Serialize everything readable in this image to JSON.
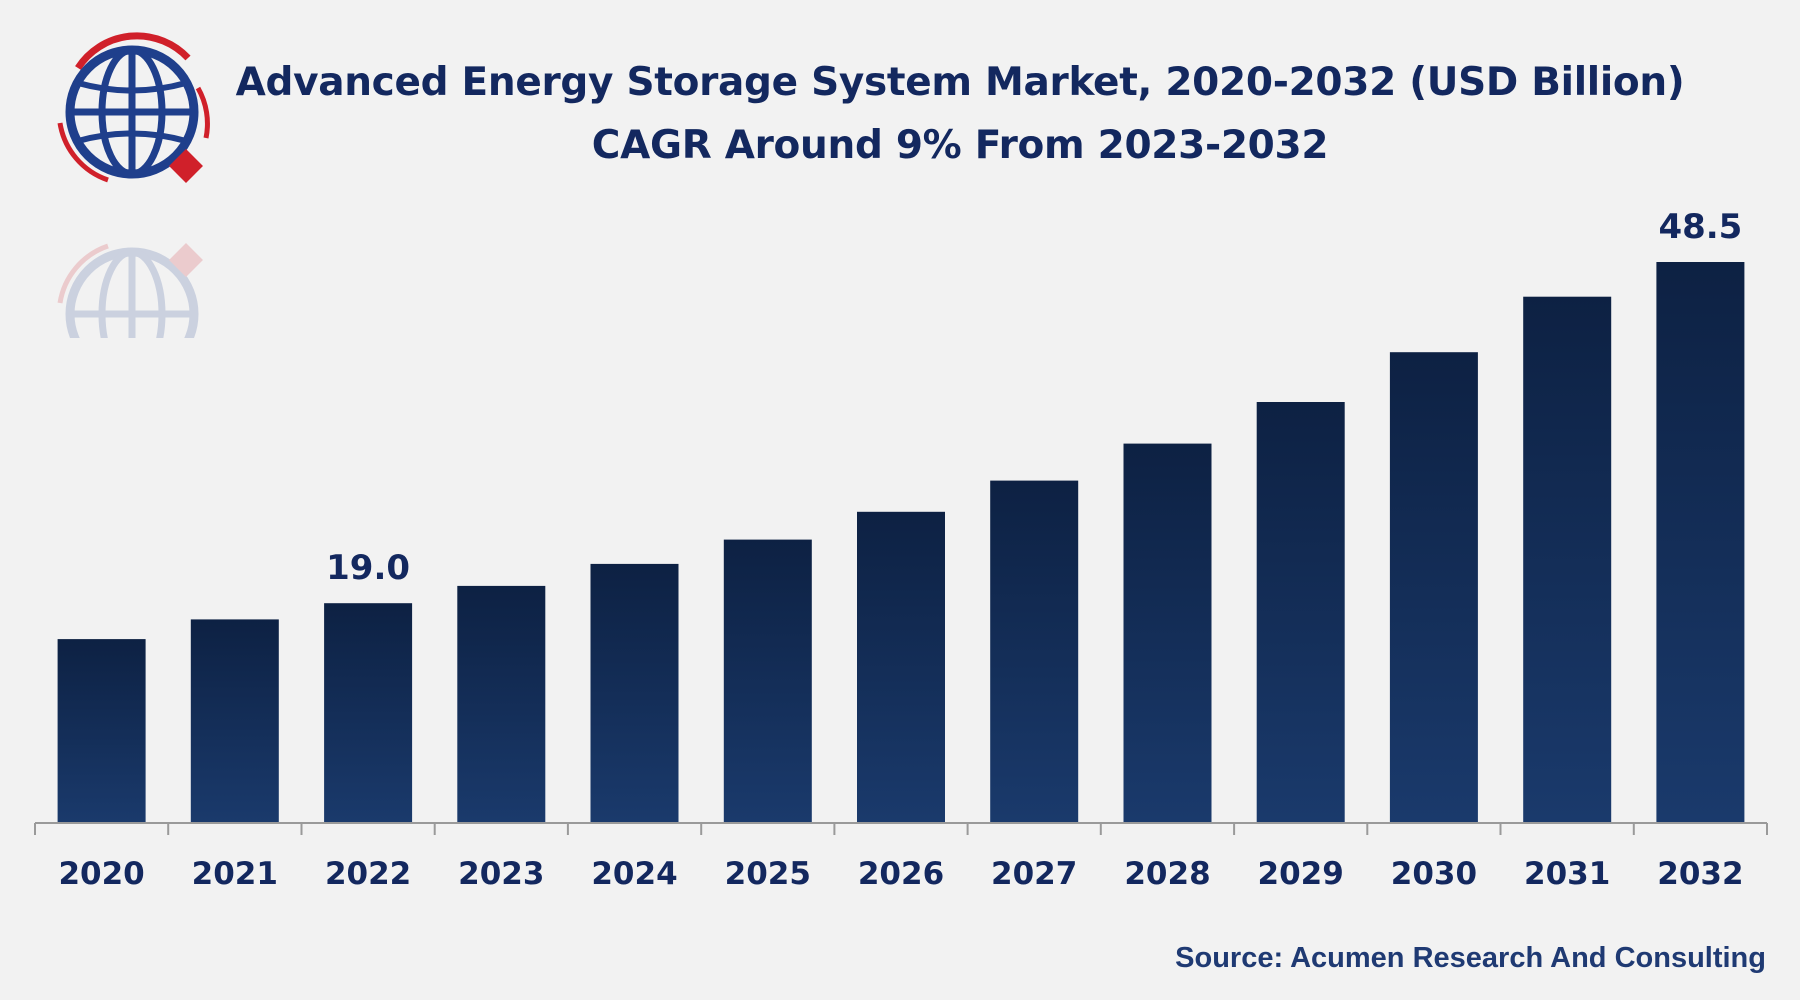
{
  "header": {
    "title_line1": "Advanced Energy Storage System Market, 2020-2032 (USD Billion)",
    "title_line2": "CAGR Around 9% From 2023-2032"
  },
  "logo": {
    "icon": "globe-logo-icon"
  },
  "source": "Source: Acumen Research And Consulting",
  "colors": {
    "bar_top": "#0d2143",
    "bar_bottom": "#1a3a6c",
    "text": "#13285f",
    "axis": "#9a9a9a",
    "logo_blue": "#1f3f8c",
    "logo_red": "#d0202a"
  },
  "chart_data": {
    "type": "bar",
    "title": "Advanced Energy Storage System Market, 2020-2032 (USD Billion)",
    "subtitle": "CAGR Around 9% From 2023-2032",
    "xlabel": "",
    "ylabel": "",
    "categories": [
      "2020",
      "2021",
      "2022",
      "2023",
      "2024",
      "2025",
      "2026",
      "2027",
      "2028",
      "2029",
      "2030",
      "2031",
      "2032"
    ],
    "values": [
      15.9,
      17.6,
      19.0,
      20.5,
      22.4,
      24.5,
      26.9,
      29.6,
      32.8,
      36.4,
      40.7,
      45.5,
      48.5
    ],
    "data_labels": {
      "2": "19.0",
      "12": "48.5"
    },
    "ylim": [
      0,
      50
    ],
    "grid": false,
    "legend": "none"
  }
}
